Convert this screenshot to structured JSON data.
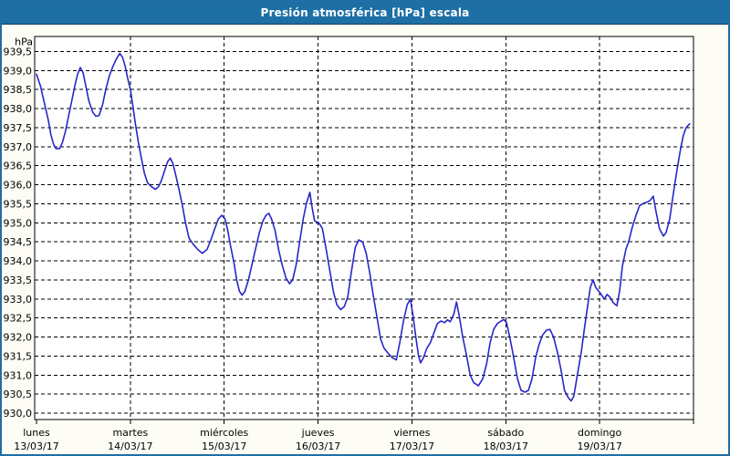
{
  "window": {
    "title": "Presión atmosférica [hPa] escala"
  },
  "colors": {
    "titlebar_bg": "#1d6fa4",
    "window_border": "#1f6ea6",
    "titlebar_underline": "#113f60",
    "background": "#fdfdf5",
    "plot_background": "#ffffff",
    "grid": "#000000",
    "line": "#2727c8",
    "text": "#000000",
    "title_text": "#ffffff"
  },
  "chart_data": {
    "type": "line",
    "title": "Presión atmosférica [hPa] escala",
    "unit_label": "hPa",
    "ylabel": "hPa",
    "xlabel": "",
    "ylim": [
      930.0,
      939.5
    ],
    "y_tick_step": 0.5,
    "grid": "dashed",
    "legend_position": "none",
    "decimal_separator": ",",
    "y_tick_labels": [
      "939,5",
      "939,0",
      "938,5",
      "938,0",
      "937,5",
      "937,0",
      "936,5",
      "936,0",
      "935,5",
      "935,0",
      "934,5",
      "934,0",
      "933,5",
      "933,0",
      "932,5",
      "932,0",
      "931,5",
      "931,0",
      "930,5",
      "930,0"
    ],
    "x_ticks": [
      {
        "weekday": "lunes",
        "date": "13/03/17"
      },
      {
        "weekday": "martes",
        "date": "14/03/17"
      },
      {
        "weekday": "miércoles",
        "date": "15/03/17"
      },
      {
        "weekday": "jueves",
        "date": "16/03/17"
      },
      {
        "weekday": "viernes",
        "date": "17/03/17"
      },
      {
        "weekday": "sábado",
        "date": "18/03/17"
      },
      {
        "weekday": "domingo",
        "date": "19/03/17"
      }
    ],
    "x_axis_span_days": 7,
    "series": [
      {
        "name": "Presión atmosférica [hPa]",
        "color": "#2727c8",
        "x_unit": "hours_since_monday_00h",
        "points": [
          [
            0,
            938.9
          ],
          [
            1,
            938.6
          ],
          [
            2,
            938.15
          ],
          [
            3,
            937.7
          ],
          [
            3.7,
            937.3
          ],
          [
            4.4,
            937.05
          ],
          [
            5,
            936.95
          ],
          [
            5.9,
            936.95
          ],
          [
            6.6,
            937.1
          ],
          [
            7.4,
            937.4
          ],
          [
            8.2,
            937.8
          ],
          [
            9,
            938.2
          ],
          [
            9.8,
            938.6
          ],
          [
            10.5,
            938.9
          ],
          [
            11.2,
            939.08
          ],
          [
            11.9,
            938.95
          ],
          [
            12.6,
            938.6
          ],
          [
            13.4,
            938.2
          ],
          [
            14.4,
            937.9
          ],
          [
            15.2,
            937.8
          ],
          [
            16,
            937.82
          ],
          [
            16.9,
            938.1
          ],
          [
            17.7,
            938.5
          ],
          [
            18.6,
            938.85
          ],
          [
            19.5,
            939.1
          ],
          [
            20.4,
            939.3
          ],
          [
            21.3,
            939.45
          ],
          [
            22,
            939.35
          ],
          [
            22.7,
            939.1
          ],
          [
            23.3,
            938.8
          ],
          [
            24,
            938.5
          ],
          [
            24.6,
            938.1
          ],
          [
            25.3,
            937.6
          ],
          [
            26,
            937.15
          ],
          [
            26.8,
            936.7
          ],
          [
            27.6,
            936.3
          ],
          [
            28.4,
            936.05
          ],
          [
            29.4,
            935.95
          ],
          [
            30.4,
            935.88
          ],
          [
            31.2,
            935.95
          ],
          [
            31.9,
            936.1
          ],
          [
            32.7,
            936.35
          ],
          [
            33.5,
            936.6
          ],
          [
            34.2,
            936.7
          ],
          [
            34.9,
            936.55
          ],
          [
            35.6,
            936.25
          ],
          [
            36.5,
            935.85
          ],
          [
            37.3,
            935.45
          ],
          [
            38.1,
            935.0
          ],
          [
            39,
            934.6
          ],
          [
            40,
            934.45
          ],
          [
            41.2,
            934.3
          ],
          [
            42.4,
            934.2
          ],
          [
            43.6,
            934.3
          ],
          [
            44.6,
            934.55
          ],
          [
            45.6,
            934.85
          ],
          [
            46.5,
            935.1
          ],
          [
            47.4,
            935.2
          ],
          [
            48.2,
            935.1
          ],
          [
            48.9,
            934.8
          ],
          [
            49.6,
            934.4
          ],
          [
            50.5,
            933.95
          ],
          [
            51.2,
            933.5
          ],
          [
            51.9,
            933.2
          ],
          [
            52.6,
            933.1
          ],
          [
            53.3,
            933.2
          ],
          [
            54.2,
            933.5
          ],
          [
            55.1,
            933.9
          ],
          [
            56.1,
            934.35
          ],
          [
            57,
            934.75
          ],
          [
            57.9,
            935.05
          ],
          [
            58.7,
            935.2
          ],
          [
            59.4,
            935.25
          ],
          [
            60.1,
            935.1
          ],
          [
            61,
            934.8
          ],
          [
            61.9,
            934.3
          ],
          [
            62.8,
            933.9
          ],
          [
            63.8,
            933.55
          ],
          [
            64.7,
            933.4
          ],
          [
            65.5,
            933.5
          ],
          [
            66.4,
            933.9
          ],
          [
            67.3,
            934.5
          ],
          [
            68.2,
            935.1
          ],
          [
            69,
            935.5
          ],
          [
            69.9,
            935.8
          ],
          [
            70.4,
            935.45
          ],
          [
            71.1,
            935.05
          ],
          [
            72.2,
            935.0
          ],
          [
            73.1,
            934.85
          ],
          [
            74,
            934.35
          ],
          [
            75,
            933.75
          ],
          [
            75.9,
            933.2
          ],
          [
            76.8,
            932.85
          ],
          [
            77.8,
            932.72
          ],
          [
            78.7,
            932.8
          ],
          [
            79.6,
            933.05
          ],
          [
            80.5,
            933.7
          ],
          [
            81.5,
            934.35
          ],
          [
            82.4,
            934.55
          ],
          [
            83.4,
            934.5
          ],
          [
            84.3,
            934.2
          ],
          [
            85.2,
            933.7
          ],
          [
            86.1,
            933.1
          ],
          [
            87.1,
            932.5
          ],
          [
            88,
            931.95
          ],
          [
            88.9,
            931.7
          ],
          [
            90.1,
            931.55
          ],
          [
            91.1,
            931.45
          ],
          [
            92,
            931.4
          ],
          [
            92.9,
            931.85
          ],
          [
            93.9,
            932.45
          ],
          [
            94.8,
            932.85
          ],
          [
            95.6,
            933.0
          ],
          [
            96.3,
            932.55
          ],
          [
            97,
            932.0
          ],
          [
            97.7,
            931.5
          ],
          [
            98.2,
            931.32
          ],
          [
            98.9,
            931.45
          ],
          [
            99.8,
            931.7
          ],
          [
            100.7,
            931.85
          ],
          [
            101.6,
            932.1
          ],
          [
            102.5,
            932.35
          ],
          [
            103.4,
            932.42
          ],
          [
            104.4,
            932.38
          ],
          [
            105.1,
            932.45
          ],
          [
            105.8,
            932.4
          ],
          [
            106.7,
            932.6
          ],
          [
            107.4,
            932.92
          ],
          [
            108.1,
            932.55
          ],
          [
            109,
            932.0
          ],
          [
            110,
            931.5
          ],
          [
            110.9,
            931.0
          ],
          [
            111.8,
            930.8
          ],
          [
            113,
            930.72
          ],
          [
            114.1,
            930.9
          ],
          [
            115.1,
            931.3
          ],
          [
            116,
            931.85
          ],
          [
            116.9,
            932.2
          ],
          [
            117.8,
            932.35
          ],
          [
            118.8,
            932.42
          ],
          [
            119.5,
            932.46
          ],
          [
            120.2,
            932.38
          ],
          [
            120.9,
            932.05
          ],
          [
            121.6,
            931.7
          ],
          [
            122.3,
            931.3
          ],
          [
            123,
            930.9
          ],
          [
            123.9,
            930.6
          ],
          [
            124.9,
            930.55
          ],
          [
            125.8,
            930.6
          ],
          [
            126.7,
            930.9
          ],
          [
            127.6,
            931.45
          ],
          [
            128.5,
            931.8
          ],
          [
            129.4,
            932.05
          ],
          [
            130.4,
            932.18
          ],
          [
            131.3,
            932.2
          ],
          [
            132.2,
            932.0
          ],
          [
            133.2,
            931.6
          ],
          [
            134.1,
            931.15
          ],
          [
            135,
            930.6
          ],
          [
            136,
            930.4
          ],
          [
            136.7,
            930.32
          ],
          [
            137.4,
            930.45
          ],
          [
            138.3,
            931.0
          ],
          [
            139.3,
            931.6
          ],
          [
            140.2,
            932.3
          ],
          [
            140.9,
            932.8
          ],
          [
            141.6,
            933.3
          ],
          [
            142.3,
            933.5
          ],
          [
            143,
            933.3
          ],
          [
            143.8,
            933.2
          ],
          [
            144.5,
            933.1
          ],
          [
            145.2,
            933.0
          ],
          [
            145.9,
            933.12
          ],
          [
            146.6,
            933.05
          ],
          [
            147.5,
            932.9
          ],
          [
            148.4,
            932.82
          ],
          [
            149.1,
            933.2
          ],
          [
            149.8,
            933.85
          ],
          [
            150.7,
            934.3
          ],
          [
            151.4,
            934.5
          ],
          [
            152.4,
            934.9
          ],
          [
            153.3,
            935.2
          ],
          [
            154.2,
            935.45
          ],
          [
            155.4,
            935.52
          ],
          [
            156.3,
            935.55
          ],
          [
            157,
            935.6
          ],
          [
            157.7,
            935.7
          ],
          [
            158.4,
            935.3
          ],
          [
            159.3,
            934.85
          ],
          [
            160.3,
            934.65
          ],
          [
            161,
            934.75
          ],
          [
            161.9,
            935.1
          ],
          [
            162.9,
            935.8
          ],
          [
            163.8,
            936.4
          ],
          [
            164.7,
            936.95
          ],
          [
            165.4,
            937.3
          ],
          [
            166.1,
            937.5
          ],
          [
            167,
            937.6
          ]
        ]
      }
    ]
  }
}
